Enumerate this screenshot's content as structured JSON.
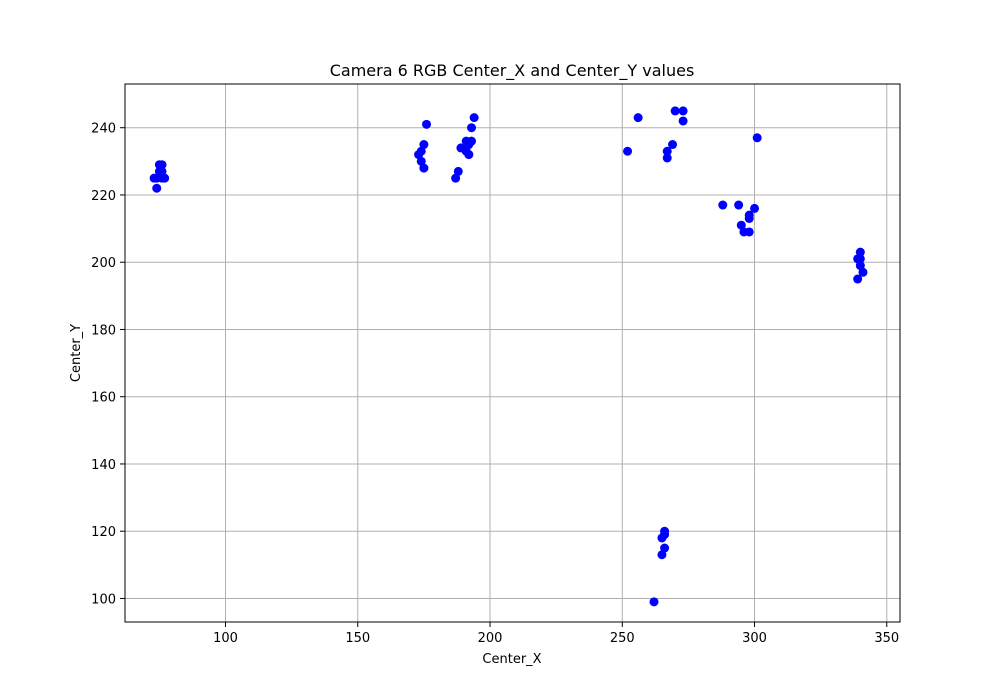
{
  "chart_data": {
    "type": "scatter",
    "title": "Camera 6 RGB Center_X and Center_Y values",
    "xlabel": "Center_X",
    "ylabel": "Center_Y",
    "xlim": [
      62,
      355
    ],
    "ylim": [
      93,
      253
    ],
    "xticks": [
      100,
      150,
      200,
      250,
      300,
      350
    ],
    "yticks": [
      100,
      120,
      140,
      160,
      180,
      200,
      220,
      240
    ],
    "grid": true,
    "marker_color": "#0000ff",
    "series": [
      {
        "points": [
          [
            73,
            225
          ],
          [
            74,
            222
          ],
          [
            75,
            229
          ],
          [
            75,
            227
          ],
          [
            76,
            229
          ],
          [
            76,
            227
          ],
          [
            76,
            225
          ],
          [
            77,
            225
          ],
          [
            74,
            225
          ],
          [
            173,
            232
          ],
          [
            174,
            230
          ],
          [
            174,
            233
          ],
          [
            175,
            235
          ],
          [
            175,
            228
          ],
          [
            176,
            241
          ],
          [
            187,
            225
          ],
          [
            188,
            227
          ],
          [
            189,
            234
          ],
          [
            191,
            236
          ],
          [
            191,
            233
          ],
          [
            192,
            232
          ],
          [
            192,
            235
          ],
          [
            193,
            236
          ],
          [
            193,
            240
          ],
          [
            194,
            243
          ],
          [
            252,
            233
          ],
          [
            256,
            243
          ],
          [
            267,
            233
          ],
          [
            267,
            231
          ],
          [
            269,
            235
          ],
          [
            270,
            245
          ],
          [
            273,
            245
          ],
          [
            273,
            242
          ],
          [
            288,
            217
          ],
          [
            294,
            217
          ],
          [
            295,
            211
          ],
          [
            296,
            209
          ],
          [
            298,
            214
          ],
          [
            298,
            213
          ],
          [
            298,
            209
          ],
          [
            300,
            216
          ],
          [
            301,
            237
          ],
          [
            339,
            201
          ],
          [
            339,
            195
          ],
          [
            340,
            203
          ],
          [
            340,
            201
          ],
          [
            340,
            199
          ],
          [
            341,
            197
          ],
          [
            262,
            99
          ],
          [
            265,
            113
          ],
          [
            265,
            118
          ],
          [
            266,
            120
          ],
          [
            266,
            119
          ],
          [
            266,
            115
          ]
        ]
      }
    ]
  }
}
